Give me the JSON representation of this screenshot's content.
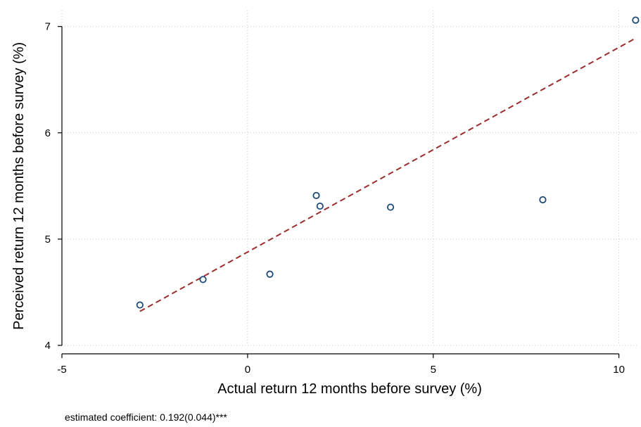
{
  "chart_data": {
    "type": "scatter",
    "xlabel": "Actual return 12 months before survey (%)",
    "ylabel": "Perceived return 12 months before survey (%)",
    "xlim": [
      -5,
      10.5
    ],
    "ylim": [
      4,
      7.15
    ],
    "xticks": [
      -5,
      0,
      5,
      10
    ],
    "yticks": [
      4,
      5,
      6,
      7
    ],
    "grid": true,
    "legend": "none",
    "points": [
      {
        "x": -2.9,
        "y": 4.38
      },
      {
        "x": -1.2,
        "y": 4.62
      },
      {
        "x": 0.6,
        "y": 4.67
      },
      {
        "x": 1.85,
        "y": 5.41
      },
      {
        "x": 1.95,
        "y": 5.31
      },
      {
        "x": 3.85,
        "y": 5.3
      },
      {
        "x": 7.95,
        "y": 5.37
      },
      {
        "x": 10.45,
        "y": 7.06
      }
    ],
    "fit_line": {
      "x": [
        -2.9,
        10.45
      ],
      "y": [
        4.32,
        6.89
      ],
      "style": "dashed"
    },
    "annotation": "estimated coefficient: 0.192(0.044)***"
  },
  "colors": {
    "point": "#1a4a7a",
    "fit_line": "#9b2d2d",
    "axis": "#000000",
    "grid": "#c8c8c8"
  }
}
